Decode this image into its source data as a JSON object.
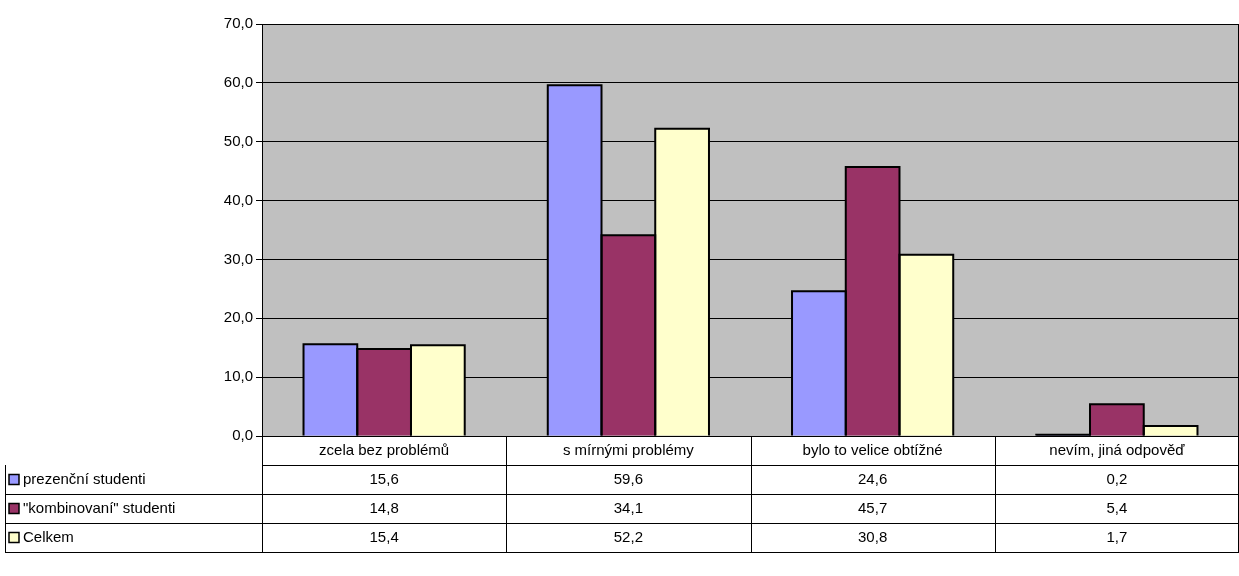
{
  "chart_data": {
    "type": "bar",
    "categories": [
      "zcela bez problémů",
      "s mírnými problémy",
      "bylo to velice obtížné",
      "nevím, jiná odpověď"
    ],
    "series": [
      {
        "name": "prezenční studenti",
        "color": "#9999ff",
        "values": [
          15.6,
          59.6,
          24.6,
          0.2
        ],
        "value_labels": [
          "15,6",
          "59,6",
          "24,6",
          "0,2"
        ]
      },
      {
        "name": "\"kombinovaní\" studenti",
        "color": "#993366",
        "values": [
          14.8,
          34.1,
          45.7,
          5.4
        ],
        "value_labels": [
          "14,8",
          "34,1",
          "45,7",
          "5,4"
        ]
      },
      {
        "name": "Celkem",
        "color": "#ffffcc",
        "values": [
          15.4,
          52.2,
          30.8,
          1.7
        ],
        "value_labels": [
          "15,4",
          "52,2",
          "30,8",
          "1,7"
        ]
      }
    ],
    "ylim": [
      0,
      70
    ],
    "yticks": [
      {
        "value": 0,
        "label": "0,0"
      },
      {
        "value": 10,
        "label": "10,0"
      },
      {
        "value": 20,
        "label": "20,0"
      },
      {
        "value": 30,
        "label": "30,0"
      },
      {
        "value": 40,
        "label": "40,0"
      },
      {
        "value": 50,
        "label": "50,0"
      },
      {
        "value": 60,
        "label": "60,0"
      },
      {
        "value": 70,
        "label": "70,0"
      }
    ],
    "grid": "y",
    "legend": "bottom left"
  }
}
